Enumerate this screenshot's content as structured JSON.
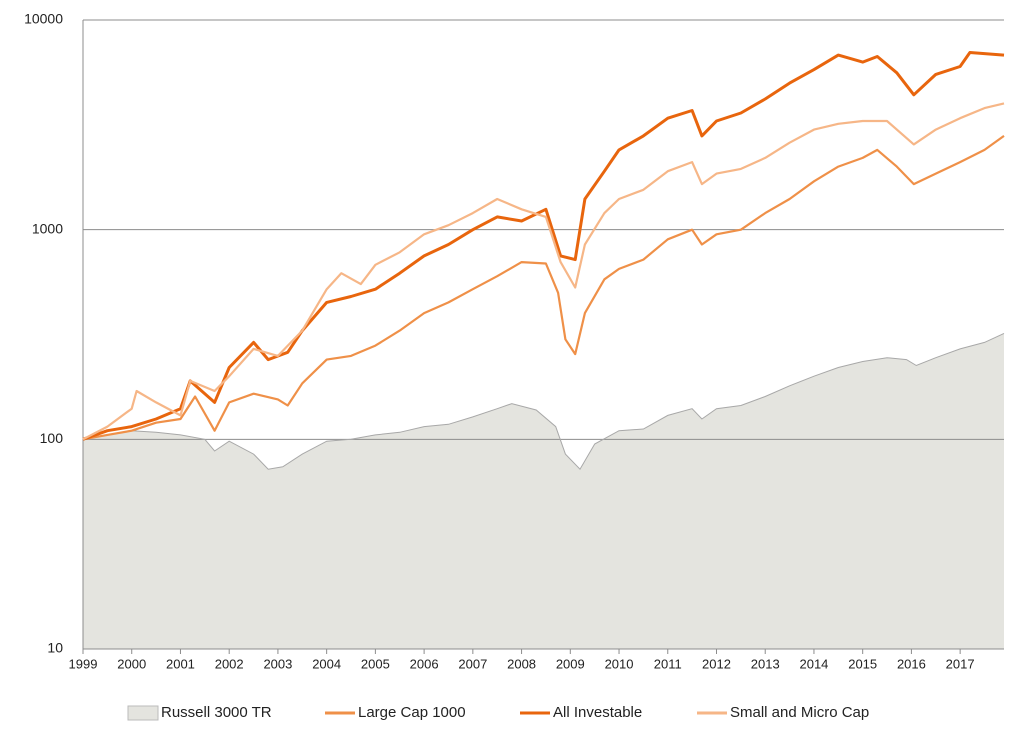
{
  "chart_data": {
    "type": "line",
    "log_y": true,
    "grid": true,
    "legend": "bottom",
    "xlim": [
      1999,
      2017.9
    ],
    "xticks": [
      1999,
      2000,
      2001,
      2002,
      2003,
      2004,
      2005,
      2006,
      2007,
      2008,
      2009,
      2010,
      2011,
      2012,
      2013,
      2014,
      2015,
      2016,
      2017
    ],
    "ylim": [
      10,
      10000
    ],
    "yticks": [
      10,
      100,
      1000,
      10000
    ],
    "series": [
      {
        "name": "Russell 3000 TR",
        "color": "#e4e4df",
        "style": "area",
        "x": [
          1999,
          1999.5,
          2000,
          2000.5,
          2001,
          2001.5,
          2001.7,
          2002,
          2002.5,
          2002.8,
          2003.1,
          2003.5,
          2004,
          2004.5,
          2005,
          2005.5,
          2006,
          2006.5,
          2007,
          2007.5,
          2007.8,
          2008.3,
          2008.7,
          2008.9,
          2009.2,
          2009.5,
          2010,
          2010.5,
          2011,
          2011.5,
          2011.7,
          2012,
          2012.5,
          2013,
          2013.5,
          2014,
          2014.5,
          2015,
          2015.5,
          2015.9,
          2016.1,
          2016.5,
          2017,
          2017.5,
          2017.9
        ],
        "values": [
          100,
          105,
          110,
          108,
          105,
          100,
          88,
          98,
          85,
          72,
          74,
          85,
          98,
          100,
          105,
          108,
          115,
          118,
          128,
          140,
          148,
          138,
          115,
          85,
          72,
          95,
          110,
          112,
          130,
          140,
          125,
          140,
          145,
          160,
          180,
          200,
          220,
          235,
          245,
          240,
          225,
          245,
          270,
          290,
          320
        ]
      },
      {
        "name": "Large Cap 1000",
        "color": "#ef9048",
        "style": "line",
        "x": [
          1999,
          1999.5,
          2000,
          2000.5,
          2001,
          2001.3,
          2001.7,
          2002,
          2002.5,
          2003,
          2003.2,
          2003.5,
          2004,
          2004.5,
          2005,
          2005.5,
          2006,
          2006.5,
          2007,
          2007.5,
          2008,
          2008.5,
          2008.75,
          2008.9,
          2009.1,
          2009.3,
          2009.7,
          2010,
          2010.5,
          2011,
          2011.5,
          2011.7,
          2012,
          2012.5,
          2013,
          2013.5,
          2014,
          2014.5,
          2015,
          2015.3,
          2015.7,
          2016.05,
          2016.5,
          2017,
          2017.5,
          2017.9
        ],
        "values": [
          100,
          105,
          110,
          120,
          125,
          160,
          110,
          150,
          165,
          155,
          145,
          185,
          240,
          250,
          280,
          330,
          400,
          450,
          520,
          600,
          700,
          690,
          500,
          300,
          255,
          400,
          580,
          650,
          720,
          900,
          1000,
          850,
          950,
          1000,
          1200,
          1400,
          1700,
          2000,
          2200,
          2400,
          2000,
          1650,
          1850,
          2100,
          2400,
          2800
        ]
      },
      {
        "name": "All Investable",
        "color": "#e8650d",
        "style": "line",
        "x": [
          1999,
          1999.5,
          2000,
          2000.5,
          2001,
          2001.2,
          2001.7,
          2002,
          2002.5,
          2002.8,
          2003.2,
          2003.5,
          2004,
          2004.5,
          2005,
          2005.5,
          2006,
          2006.5,
          2007,
          2007.5,
          2008,
          2008.5,
          2008.8,
          2009.1,
          2009.3,
          2009.7,
          2010,
          2010.5,
          2011,
          2011.5,
          2011.7,
          2012,
          2012.5,
          2013,
          2013.5,
          2014,
          2014.5,
          2015,
          2015.3,
          2015.7,
          2016.05,
          2016.5,
          2017,
          2017.2,
          2017.9
        ],
        "values": [
          100,
          110,
          115,
          125,
          140,
          190,
          150,
          220,
          290,
          240,
          260,
          330,
          450,
          480,
          520,
          620,
          750,
          850,
          1000,
          1150,
          1100,
          1250,
          750,
          720,
          1400,
          1900,
          2400,
          2800,
          3400,
          3700,
          2800,
          3300,
          3600,
          4200,
          5000,
          5800,
          6800,
          6300,
          6700,
          5600,
          4400,
          5500,
          6000,
          7000,
          6800
        ]
      },
      {
        "name": "Small and Micro Cap",
        "color": "#f6b687",
        "style": "line",
        "x": [
          1999,
          1999.5,
          2000,
          2000.1,
          2000.5,
          2001,
          2001.2,
          2001.7,
          2002,
          2002.5,
          2003,
          2003.5,
          2004,
          2004.3,
          2004.7,
          2005,
          2005.5,
          2006,
          2006.5,
          2007,
          2007.5,
          2008,
          2008.5,
          2008.8,
          2009.1,
          2009.3,
          2009.7,
          2010,
          2010.5,
          2011,
          2011.5,
          2011.7,
          2012,
          2012.5,
          2013,
          2013.5,
          2014,
          2014.5,
          2015,
          2015.5,
          2016.05,
          2016.5,
          2017,
          2017.5,
          2017.9
        ],
        "values": [
          100,
          115,
          140,
          170,
          150,
          130,
          190,
          170,
          200,
          270,
          250,
          330,
          520,
          620,
          550,
          680,
          780,
          950,
          1050,
          1200,
          1400,
          1250,
          1150,
          700,
          530,
          850,
          1200,
          1400,
          1550,
          1900,
          2100,
          1650,
          1850,
          1950,
          2200,
          2600,
          3000,
          3200,
          3300,
          3300,
          2550,
          3000,
          3400,
          3800,
          4000
        ]
      }
    ]
  }
}
